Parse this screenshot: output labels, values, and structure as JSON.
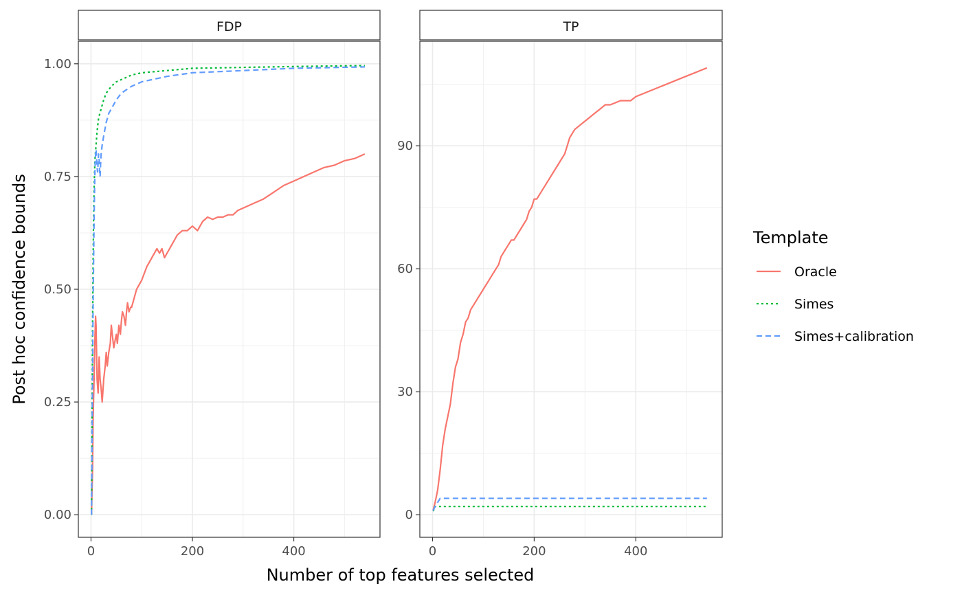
{
  "chart_data": {
    "type": "line",
    "xlabel": "Number of top features selected",
    "ylabel": "Post hoc confidence bounds",
    "legend": {
      "title": "Template",
      "position": "right",
      "entries": [
        {
          "name": "Oracle",
          "color": "#F8766D",
          "dash": "solid"
        },
        {
          "name": "Simes",
          "color": "#00BA38",
          "dash": "dotted"
        },
        {
          "name": "Simes+calibration",
          "color": "#619CFF",
          "dash": "dashed"
        }
      ]
    },
    "grid": true,
    "panels": [
      {
        "strip": "FDP",
        "xlim": [
          -25,
          570
        ],
        "ylim": [
          -0.05,
          1.05
        ],
        "x_ticks": [
          0,
          200,
          400
        ],
        "x_tick_labels": [
          "0",
          "200",
          "400"
        ],
        "y_ticks": [
          0,
          0.25,
          0.5,
          0.75,
          1
        ],
        "y_tick_labels": [
          "0.00",
          "0.25",
          "0.50",
          "0.75",
          "1.00"
        ],
        "series": [
          {
            "name": "Oracle",
            "x": [
              1,
              2,
              3,
              4,
              5,
              6,
              7,
              8,
              9,
              10,
              12,
              14,
              16,
              18,
              20,
              22,
              25,
              28,
              30,
              32,
              35,
              38,
              40,
              42,
              45,
              48,
              50,
              52,
              55,
              58,
              60,
              62,
              65,
              68,
              70,
              72,
              75,
              78,
              80,
              85,
              90,
              95,
              100,
              110,
              120,
              130,
              135,
              140,
              145,
              150,
              160,
              170,
              180,
              190,
              200,
              210,
              220,
              230,
              240,
              250,
              260,
              270,
              280,
              290,
              300,
              320,
              340,
              360,
              380,
              400,
              420,
              440,
              460,
              480,
              500,
              520,
              540
            ],
            "y": [
              0,
              0.05,
              0.1,
              0.2,
              0.25,
              0.3,
              0.35,
              0.4,
              0.44,
              0.42,
              0.3,
              0.27,
              0.35,
              0.3,
              0.28,
              0.25,
              0.3,
              0.33,
              0.36,
              0.33,
              0.36,
              0.38,
              0.42,
              0.4,
              0.37,
              0.39,
              0.4,
              0.38,
              0.42,
              0.4,
              0.43,
              0.45,
              0.44,
              0.42,
              0.45,
              0.47,
              0.45,
              0.46,
              0.46,
              0.48,
              0.5,
              0.51,
              0.52,
              0.55,
              0.57,
              0.59,
              0.58,
              0.59,
              0.57,
              0.58,
              0.6,
              0.62,
              0.63,
              0.63,
              0.64,
              0.63,
              0.65,
              0.66,
              0.655,
              0.66,
              0.66,
              0.665,
              0.665,
              0.675,
              0.68,
              0.69,
              0.7,
              0.715,
              0.73,
              0.74,
              0.75,
              0.76,
              0.77,
              0.775,
              0.785,
              0.79,
              0.8
            ]
          },
          {
            "name": "Simes",
            "x": [
              1,
              2,
              3,
              4,
              5,
              6,
              7,
              8,
              10,
              12,
              15,
              20,
              25,
              30,
              40,
              50,
              60,
              80,
              100,
              150,
              200,
              300,
              400,
              540
            ],
            "y": [
              0,
              0.2,
              0.4,
              0.55,
              0.65,
              0.72,
              0.76,
              0.79,
              0.82,
              0.85,
              0.88,
              0.9,
              0.92,
              0.935,
              0.95,
              0.96,
              0.965,
              0.975,
              0.98,
              0.985,
              0.99,
              0.992,
              0.994,
              0.996
            ]
          },
          {
            "name": "Simes+calibration",
            "x": [
              1,
              2,
              3,
              4,
              5,
              6,
              7,
              8,
              9,
              10,
              11,
              12,
              13,
              14,
              15,
              16,
              17,
              18,
              19,
              20,
              22,
              25,
              30,
              35,
              40,
              50,
              60,
              80,
              100,
              150,
              200,
              300,
              400,
              540
            ],
            "y": [
              0,
              0.15,
              0.3,
              0.45,
              0.55,
              0.65,
              0.72,
              0.77,
              0.8,
              0.81,
              0.79,
              0.77,
              0.76,
              0.78,
              0.8,
              0.79,
              0.76,
              0.75,
              0.78,
              0.8,
              0.82,
              0.84,
              0.87,
              0.89,
              0.9,
              0.92,
              0.935,
              0.95,
              0.96,
              0.972,
              0.98,
              0.985,
              0.99,
              0.993
            ]
          }
        ]
      },
      {
        "strip": "TP",
        "xlim": [
          -25,
          570
        ],
        "ylim": [
          -5.5,
          115.5
        ],
        "x_ticks": [
          0,
          200,
          400
        ],
        "x_tick_labels": [
          "0",
          "200",
          "400"
        ],
        "y_ticks": [
          0,
          30,
          60,
          90
        ],
        "y_tick_labels": [
          "0",
          "30",
          "60",
          "90"
        ],
        "series": [
          {
            "name": "Oracle",
            "x": [
              1,
              5,
              10,
              15,
              20,
              25,
              30,
              35,
              40,
              45,
              50,
              55,
              60,
              65,
              70,
              75,
              80,
              85,
              90,
              95,
              100,
              110,
              120,
              130,
              135,
              140,
              145,
              150,
              155,
              160,
              170,
              180,
              185,
              190,
              195,
              200,
              205,
              210,
              220,
              230,
              240,
              250,
              260,
              265,
              270,
              275,
              280,
              290,
              300,
              310,
              320,
              330,
              340,
              350,
              370,
              390,
              400,
              420,
              440,
              460,
              480,
              500,
              520,
              540
            ],
            "y": [
              1,
              3,
              6,
              11,
              17,
              21,
              24,
              27,
              32,
              36,
              38,
              42,
              44,
              47,
              48,
              50,
              51,
              52,
              53,
              54,
              55,
              57,
              59,
              61,
              63,
              64,
              65,
              66,
              67,
              67,
              69,
              71,
              72,
              74,
              75,
              77,
              77,
              78,
              80,
              82,
              84,
              86,
              88,
              90,
              92,
              93,
              94,
              95,
              96,
              97,
              98,
              99,
              100,
              100,
              101,
              101,
              102,
              103,
              104,
              105,
              106,
              107,
              108,
              109
            ]
          },
          {
            "name": "Simes",
            "x": [
              1,
              2,
              3,
              4,
              540
            ],
            "y": [
              1,
              1,
              2,
              2,
              2
            ]
          },
          {
            "name": "Simes+calibration",
            "x": [
              1,
              5,
              10,
              15,
              540
            ],
            "y": [
              1,
              2,
              3,
              4,
              4
            ]
          }
        ]
      }
    ]
  }
}
